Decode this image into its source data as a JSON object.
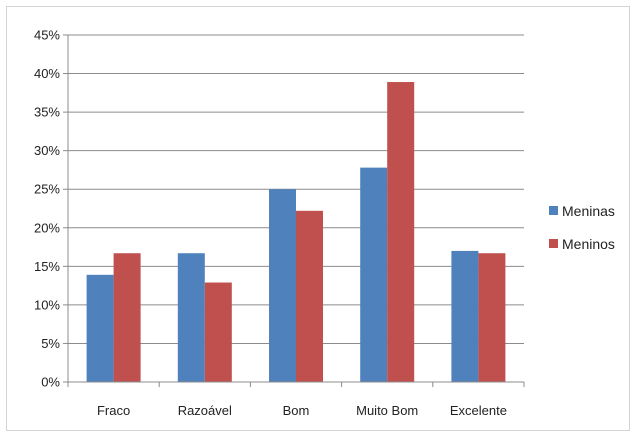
{
  "chart_data": {
    "type": "bar",
    "categories": [
      "Fraco",
      "Razoável",
      "Bom",
      "Muito Bom",
      "Excelente"
    ],
    "series": [
      {
        "name": "Meninas",
        "color": "#4f81bd",
        "values": [
          13.9,
          16.7,
          25.0,
          27.8,
          17.0
        ]
      },
      {
        "name": "Meninos",
        "color": "#c0504d",
        "values": [
          16.7,
          12.9,
          22.2,
          38.9,
          16.7
        ]
      }
    ],
    "ylim": [
      0,
      45
    ],
    "yticks": [
      0,
      5,
      10,
      15,
      20,
      25,
      30,
      35,
      40,
      45
    ],
    "ytick_labels": [
      "0%",
      "5%",
      "10%",
      "15%",
      "20%",
      "25%",
      "30%",
      "35%",
      "40%",
      "45%"
    ],
    "grid": true,
    "legend_position": "right"
  }
}
